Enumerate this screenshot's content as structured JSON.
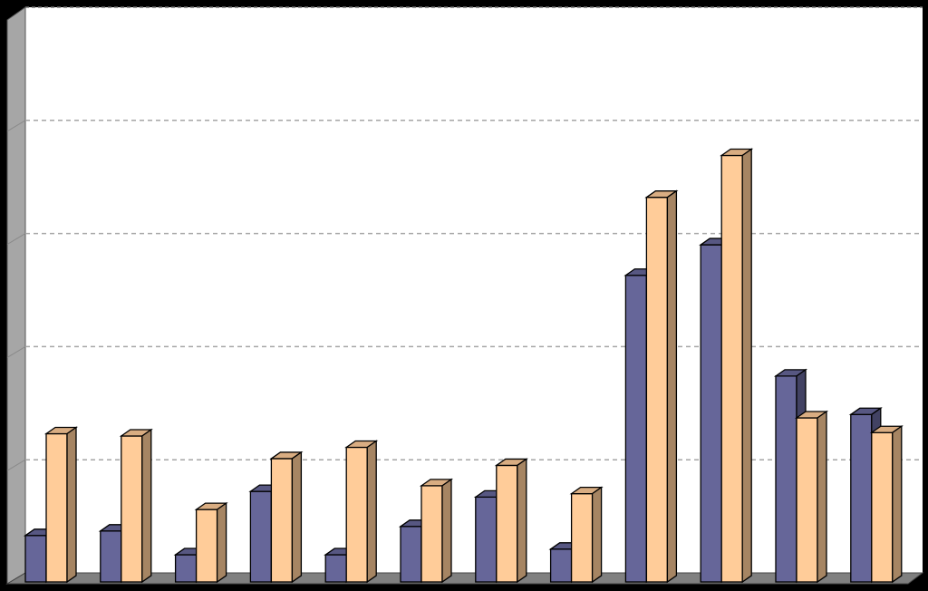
{
  "chart_data": {
    "type": "bar",
    "style": "3d-clustered-column",
    "title": "",
    "xlabel": "",
    "ylabel": "",
    "ylim": [
      0,
      5
    ],
    "grid": true,
    "legend": "none",
    "categories": [
      "",
      "",
      "",
      "",
      "",
      "",
      "",
      "",
      "",
      "",
      "",
      ""
    ],
    "series": [
      {
        "color": "#666699",
        "values": [
          0.33,
          0.37,
          0.16,
          0.72,
          0.16,
          0.41,
          0.67,
          0.21,
          2.63,
          2.9,
          1.74,
          1.4
        ]
      },
      {
        "color": "#FFCC99",
        "values": [
          1.23,
          1.21,
          0.56,
          1.01,
          1.11,
          0.77,
          0.95,
          0.7,
          3.32,
          3.69,
          1.37,
          1.24
        ]
      }
    ]
  },
  "colors": {
    "background": "#000000",
    "plot_area": "#FFFFFF",
    "floor": "#808080",
    "wall": "#A6A6A6",
    "gridline": "#A6A6A6"
  }
}
